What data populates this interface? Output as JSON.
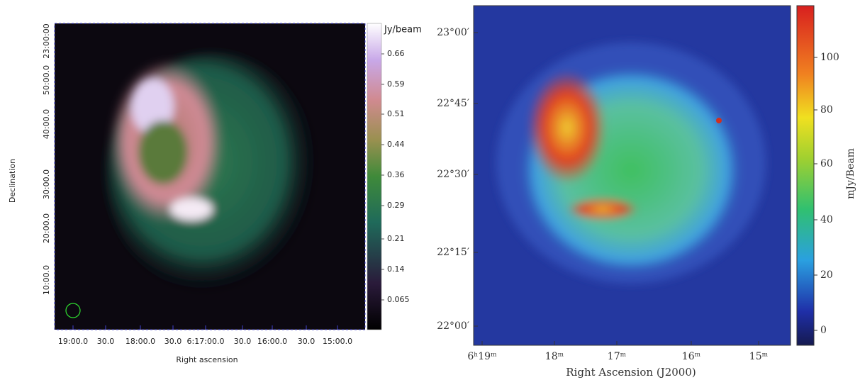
{
  "panels": [
    {
      "x_label": "Right ascension",
      "y_label": "Declination",
      "x_ticks": [
        "19:00.0",
        "30.0",
        "18:00.0",
        "30.0",
        "6:17:00.0",
        "30.0",
        "16:00.0",
        "30.0",
        "15:00.0"
      ],
      "y_ticks": [
        "23:00:00",
        "50:00.0",
        "40:00.0",
        "30:00.0",
        "20:00.0",
        "10:00.0"
      ],
      "colorbar": {
        "label": "Jy/beam",
        "ticks": [
          "0.66",
          "0.59",
          "0.51",
          "0.44",
          "0.36",
          "0.29",
          "0.21",
          "0.14",
          "0.065"
        ]
      }
    },
    {
      "x_label": "Right Ascension (J2000)",
      "x_ticks": [
        "6ʰ19ᵐ",
        "18ᵐ",
        "17ᵐ",
        "16ᵐ",
        "15ᵐ"
      ],
      "y_ticks": [
        "23°00′",
        "22°45′",
        "22°30′",
        "22°15′",
        "22°00′"
      ],
      "colorbar": {
        "label": "mJy/Beam",
        "ticks": [
          "100",
          "80",
          "60",
          "40",
          "20",
          "0"
        ]
      }
    }
  ]
}
